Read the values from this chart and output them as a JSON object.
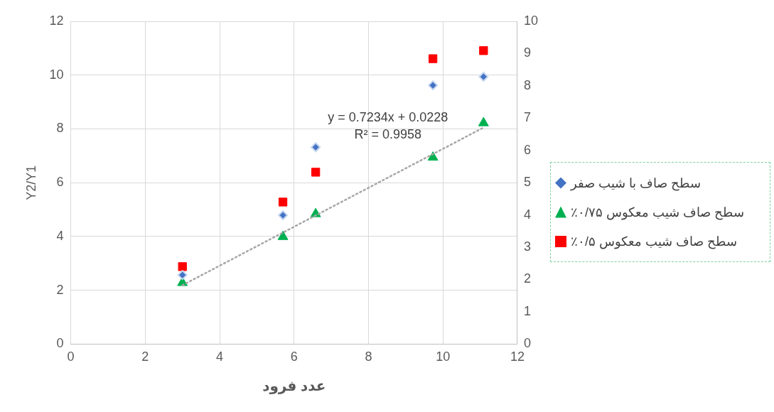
{
  "chart_data": {
    "type": "scatter",
    "xlabel": "عدد فرود",
    "ylabel": "Y2/Y1",
    "xlim": [
      0,
      12
    ],
    "xticks": [
      0,
      2,
      4,
      6,
      8,
      10,
      12
    ],
    "ylim": [
      0,
      12
    ],
    "yticks": [
      0,
      2,
      4,
      6,
      8,
      10,
      12
    ],
    "y2lim": [
      0,
      10
    ],
    "y2ticks": [
      0,
      1,
      2,
      3,
      4,
      5,
      6,
      7,
      8,
      9,
      10
    ],
    "grid": true,
    "legend": "right",
    "x": [
      3.0,
      5.7,
      6.58,
      9.73,
      11.09
    ],
    "series": [
      {
        "name": "سطح صاف با شیب صفر",
        "color": "#4472c4",
        "marker": "diamond",
        "values": [
          2.57,
          4.79,
          7.32,
          9.62,
          9.94
        ]
      },
      {
        "name": "سطح صاف شیب معکوس ۰/۷۵٪",
        "color": "#00b050",
        "marker": "triangle",
        "values": [
          2.28,
          3.99,
          4.84,
          6.94,
          8.22
        ]
      },
      {
        "name": "سطح صاف شیب معکوس ۰/۵٪",
        "color": "#ff0000",
        "marker": "square",
        "values": [
          2.88,
          5.28,
          6.39,
          10.61,
          10.91
        ]
      },
      {
        "type": "line",
        "color": "#a6a6a6",
        "marker": "none",
        "line_style": "dotted",
        "x": [
          3.0,
          11.09
        ],
        "values": [
          2.19,
          8.05
        ]
      }
    ],
    "annotations": [
      "y = 0.7234x + 0.0228",
      "R² = 0.9958"
    ]
  }
}
